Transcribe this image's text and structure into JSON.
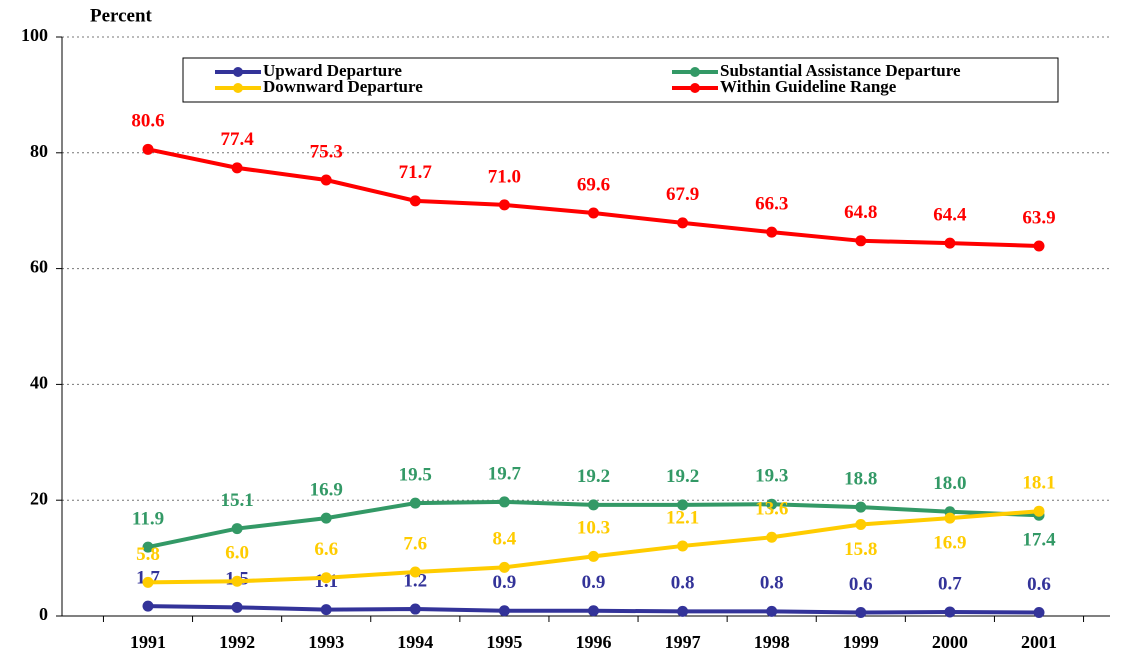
{
  "chart_data": {
    "type": "line",
    "y_axis_label": "Percent",
    "categories": [
      "1991",
      "1992",
      "1993",
      "1994",
      "1995",
      "1996",
      "1997",
      "1998",
      "1999",
      "2000",
      "2001"
    ],
    "ylim": [
      0,
      100
    ],
    "yticks": [
      0,
      20,
      40,
      60,
      80,
      100
    ],
    "grid": true,
    "series": [
      {
        "name": "Upward Departure",
        "color": "#333399",
        "values": [
          1.7,
          1.5,
          1.1,
          1.2,
          0.9,
          0.9,
          0.8,
          0.8,
          0.6,
          0.7,
          0.6
        ],
        "value_labels": [
          "1.7",
          "1.5",
          "1.1",
          "1.2",
          "0.9",
          "0.9",
          "0.8",
          "0.8",
          "0.6",
          "0.7",
          "0.6"
        ]
      },
      {
        "name": "Substantial Assistance Departure",
        "color": "#339966",
        "values": [
          11.9,
          15.1,
          16.9,
          19.5,
          19.7,
          19.2,
          19.2,
          19.3,
          18.8,
          18.0,
          17.4
        ],
        "value_labels": [
          "11.9",
          "15.1",
          "16.9",
          "19.5",
          "19.7",
          "19.2",
          "19.2",
          "19.3",
          "18.8",
          "18.0",
          "17.4"
        ]
      },
      {
        "name": "Downward Departure",
        "color": "#ffcc00",
        "values": [
          5.8,
          6.0,
          6.6,
          7.6,
          8.4,
          10.3,
          12.1,
          13.6,
          15.8,
          16.9,
          18.1
        ],
        "value_labels": [
          "5.8",
          "6.0",
          "6.6",
          "7.6",
          "8.4",
          "10.3",
          "12.1",
          "13.6",
          "15.8",
          "16.9",
          "18.1"
        ]
      },
      {
        "name": "Within Guideline Range",
        "color": "#ff0000",
        "values": [
          80.6,
          77.4,
          75.3,
          71.7,
          71.0,
          69.6,
          67.9,
          66.3,
          64.8,
          64.4,
          63.9
        ],
        "value_labels": [
          "80.6",
          "77.4",
          "75.3",
          "71.7",
          "71.0",
          "69.6",
          "67.9",
          "66.3",
          "64.8",
          "64.4",
          "63.9"
        ]
      }
    ]
  }
}
